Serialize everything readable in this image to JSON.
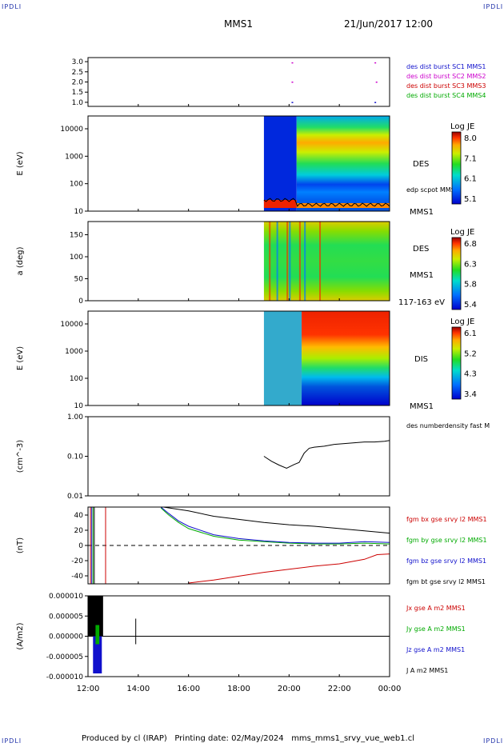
{
  "corners": {
    "tl": "IPDLI",
    "tr": "IPDLI",
    "bl": "IPDLI",
    "br": "IPDLI"
  },
  "header": {
    "title": "MMS1",
    "date": "21/Jun/2017 12:00"
  },
  "footer": "Produced by cl (IRAP)   Printing date: 02/May/2024   mms_mms1_srvy_vue_web1.cl",
  "colors": {
    "sc1": "#1010cc",
    "sc2": "#cc00cc",
    "sc3": "#cc0000",
    "sc4": "#00aa00",
    "black": "#000000"
  },
  "time_axis": {
    "ticks": [
      "12:00",
      "14:00",
      "16:00",
      "18:00",
      "20:00",
      "22:00",
      "00:00"
    ],
    "range_hours": [
      12,
      24
    ]
  },
  "chart_data": [
    {
      "type": "scatter",
      "name": "burst",
      "yticks": [
        "3.0",
        "2.5",
        "2.0",
        "1.5",
        "1.0"
      ],
      "ylim": [
        0.8,
        3.2
      ],
      "legend": [
        {
          "label": "des dist burst SC1 MMS1",
          "color": "#1010cc"
        },
        {
          "label": "des dist burst SC2 MMS2",
          "color": "#cc00cc"
        },
        {
          "label": "des dist burst SC3 MMS3",
          "color": "#cc0000"
        },
        {
          "label": "des dist burst SC4 MMS4",
          "color": "#00aa00"
        }
      ],
      "points": [
        {
          "t": 20.1,
          "y": 2.95,
          "c": "#cc00cc"
        },
        {
          "t": 23.4,
          "y": 2.95,
          "c": "#cc00cc"
        },
        {
          "t": 20.1,
          "y": 2.0,
          "c": "#cc00cc"
        },
        {
          "t": 23.45,
          "y": 2.0,
          "c": "#cc00cc"
        },
        {
          "t": 20.1,
          "y": 1.0,
          "c": "#1010cc"
        },
        {
          "t": 23.4,
          "y": 1.0,
          "c": "#1010cc"
        }
      ]
    },
    {
      "type": "heatmap",
      "name": "des-energy",
      "ylabel": "E (eV)",
      "yticks": [
        "10000",
        "1000",
        "100",
        "10"
      ],
      "right_labels": [
        "DES",
        "edp scpot MMS1",
        "MMS1"
      ],
      "colorbar": {
        "title": "Log JE",
        "ticks": [
          "8.0",
          "7.1",
          "6.1",
          "5.1"
        ]
      }
    },
    {
      "type": "heatmap",
      "name": "des-pitch",
      "ylabel": "a (deg)",
      "yticks": [
        "150",
        "100",
        "50",
        "0"
      ],
      "right_labels": [
        "DES",
        "MMS1",
        "117-163 eV"
      ],
      "colorbar": {
        "title": "Log JE",
        "ticks": [
          "6.8",
          "6.3",
          "5.8",
          "5.4"
        ]
      }
    },
    {
      "type": "heatmap",
      "name": "dis-energy",
      "ylabel": "E (eV)",
      "yticks": [
        "10000",
        "1000",
        "100",
        "10"
      ],
      "right_labels": [
        "DIS",
        "MMS1"
      ],
      "colorbar": {
        "title": "Log JE",
        "ticks": [
          "6.1",
          "5.2",
          "4.3",
          "3.4"
        ]
      }
    },
    {
      "type": "line",
      "name": "density",
      "ylabel": "(cm^-3)",
      "yticks": [
        "1.00",
        "0.10",
        "0.01"
      ],
      "ylim": [
        0.01,
        1.0
      ],
      "legend": [
        {
          "label": "des numberdensity fast M",
          "color": "#000000"
        }
      ],
      "series": [
        {
          "color": "#000000",
          "points": [
            [
              19.0,
              0.1
            ],
            [
              19.3,
              0.075
            ],
            [
              19.6,
              0.06
            ],
            [
              19.9,
              0.05
            ],
            [
              20.2,
              0.062
            ],
            [
              20.4,
              0.07
            ],
            [
              20.6,
              0.12
            ],
            [
              20.8,
              0.16
            ],
            [
              21.0,
              0.17
            ],
            [
              21.4,
              0.18
            ],
            [
              21.8,
              0.2
            ],
            [
              22.2,
              0.21
            ],
            [
              22.6,
              0.22
            ],
            [
              23.0,
              0.23
            ],
            [
              23.4,
              0.23
            ],
            [
              23.8,
              0.24
            ],
            [
              24.0,
              0.25
            ]
          ]
        }
      ]
    },
    {
      "type": "line",
      "name": "magnetic-field",
      "ylabel": "(nT)",
      "yticks": [
        "40",
        "20",
        "0",
        "-20",
        "-40"
      ],
      "ylim": [
        -50,
        50
      ],
      "legend": [
        {
          "label": "fgm bx gse srvy l2 MMS1",
          "color": "#cc0000"
        },
        {
          "label": "fgm by gse srvy l2 MMS1",
          "color": "#00aa00"
        },
        {
          "label": "fgm bz gse srvy l2 MMS1",
          "color": "#1010cc"
        },
        {
          "label": "fgm bt gse srvy l2 MMS1",
          "color": "#000000"
        }
      ],
      "series": [
        {
          "color": "#000000",
          "points": [
            [
              15.0,
              50
            ],
            [
              16.0,
              45
            ],
            [
              17.0,
              38
            ],
            [
              18.0,
              34
            ],
            [
              19.0,
              30
            ],
            [
              20.0,
              27
            ],
            [
              21.0,
              25
            ],
            [
              22.0,
              22
            ],
            [
              23.0,
              19
            ],
            [
              24.0,
              16
            ]
          ]
        },
        {
          "color": "#00aa00",
          "points": [
            [
              14.9,
              49
            ],
            [
              15.2,
              40
            ],
            [
              15.6,
              30
            ],
            [
              16.0,
              22
            ],
            [
              17.0,
              12
            ],
            [
              18.0,
              7
            ],
            [
              19.0,
              5
            ],
            [
              20.0,
              3
            ],
            [
              21.0,
              2
            ],
            [
              22.0,
              2
            ],
            [
              23.0,
              3
            ],
            [
              24.0,
              2
            ]
          ]
        },
        {
          "color": "#1010cc",
          "points": [
            [
              14.9,
              50
            ],
            [
              15.2,
              42
            ],
            [
              15.6,
              32
            ],
            [
              16.0,
              25
            ],
            [
              17.0,
              14
            ],
            [
              18.0,
              9
            ],
            [
              19.0,
              6
            ],
            [
              20.0,
              4
            ],
            [
              21.0,
              3
            ],
            [
              22.0,
              3
            ],
            [
              23.0,
              5
            ],
            [
              24.0,
              4
            ]
          ]
        },
        {
          "color": "#cc0000",
          "points": [
            [
              16.0,
              -49
            ],
            [
              17.0,
              -45
            ],
            [
              18.0,
              -40
            ],
            [
              19.0,
              -35
            ],
            [
              20.0,
              -31
            ],
            [
              21.0,
              -27
            ],
            [
              22.0,
              -24
            ],
            [
              23.0,
              -18
            ],
            [
              23.5,
              -12
            ],
            [
              24.0,
              -11
            ]
          ]
        }
      ],
      "spikes": [
        {
          "t": 12.1,
          "color": "#cc0000"
        },
        {
          "t": 12.15,
          "color": "#1010cc"
        },
        {
          "t": 12.2,
          "color": "#00aa00"
        },
        {
          "t": 12.25,
          "color": "#000000"
        },
        {
          "t": 12.7,
          "color": "#cc0000"
        }
      ]
    },
    {
      "type": "line",
      "name": "current-density",
      "ylabel": "(A/m2)",
      "yticks": [
        "0.000010",
        "0.000005",
        "0.000000",
        "-0.000005",
        "-0.000010"
      ],
      "ylim": [
        -1e-05,
        1e-05
      ],
      "legend": [
        {
          "label": "Jx gse A m2 MMS1",
          "color": "#cc0000"
        },
        {
          "label": "Jy gse A m2 MMS1",
          "color": "#00aa00"
        },
        {
          "label": "Jz gse A m2 MMS1",
          "color": "#1010cc"
        },
        {
          "label": "J A m2 MMS1",
          "color": "#000000"
        }
      ]
    }
  ]
}
